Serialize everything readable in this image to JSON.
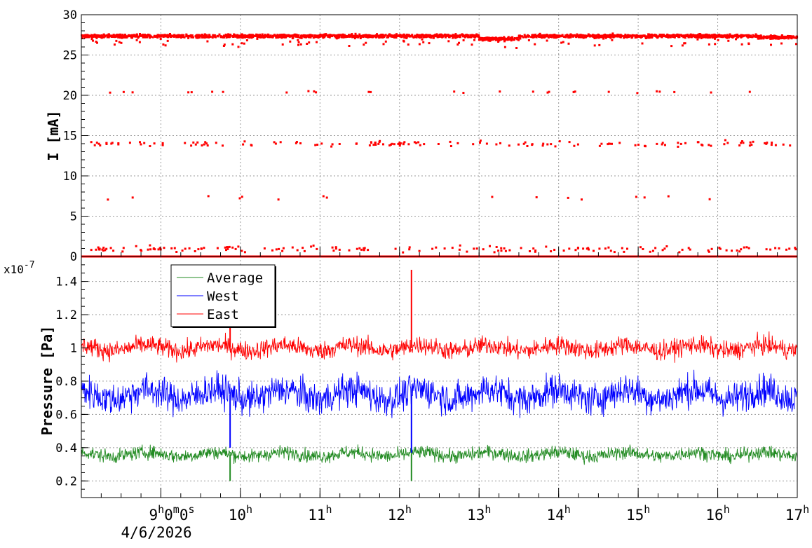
{
  "chart_data": [
    {
      "type": "scatter",
      "panel": "current",
      "ylabel": "I [mA]",
      "ylim": [
        0,
        30
      ],
      "yticks": [
        0,
        5,
        10,
        15,
        20,
        25,
        30
      ],
      "xlim_hours": [
        8.0,
        17.0
      ],
      "grid": true,
      "series": [
        {
          "color": "#ff0000",
          "bands": [
            {
              "level": 27.3,
              "spread": 0.4,
              "note_density": "dense"
            },
            {
              "level": 0.0,
              "spread": 0.0,
              "note_density": "dense"
            },
            {
              "level": 0.8,
              "spread": 0.7,
              "note_density": "sparse"
            },
            {
              "level": 14.0,
              "spread": 0.9,
              "note_density": "sparse"
            },
            {
              "level": 20.4,
              "spread": 0.3,
              "note_density": "rare"
            },
            {
              "level": 7.3,
              "spread": 0.5,
              "note_density": "rare"
            }
          ]
        }
      ]
    },
    {
      "type": "line",
      "panel": "pressure",
      "ylabel": "Pressure [Pa]",
      "yscale_label": "x10",
      "yscale_exp": "-7",
      "ylim": [
        0.1,
        1.55
      ],
      "yticks": [
        0.2,
        0.4,
        0.6,
        0.8,
        1.0,
        1.2,
        1.4
      ],
      "ytick_labels": [
        "0.2",
        "0.4",
        "0.6",
        "0.8",
        "1",
        "1.2",
        "1.4"
      ],
      "xlim_hours": [
        8.0,
        17.0
      ],
      "grid": true,
      "legend_position": "top-left",
      "series": [
        {
          "name": "Average",
          "color": "#228b22",
          "mean": 0.36,
          "spread": 0.05,
          "spike_hours": [
            9.87,
            12.15
          ],
          "spike_values": [
            0.2,
            0.2
          ]
        },
        {
          "name": "West",
          "color": "#0000ff",
          "mean": 0.72,
          "spread": 0.12,
          "spike_hours": [
            9.87,
            12.15
          ],
          "spike_values": [
            0.4,
            0.37
          ]
        },
        {
          "name": "East",
          "color": "#ff0000",
          "mean": 1.0,
          "spread": 0.07,
          "spike_hours": [
            9.87,
            12.15
          ],
          "spike_values": [
            1.3,
            1.47
          ]
        }
      ]
    }
  ],
  "x_axis": {
    "ticks": [
      {
        "hour": 9,
        "label": "9",
        "sup": "h",
        "extra": [
          [
            "0",
            "m"
          ],
          [
            "0",
            "s"
          ]
        ]
      },
      {
        "hour": 10,
        "label": "10",
        "sup": "h"
      },
      {
        "hour": 11,
        "label": "11",
        "sup": "h"
      },
      {
        "hour": 12,
        "label": "12",
        "sup": "h"
      },
      {
        "hour": 13,
        "label": "13",
        "sup": "h"
      },
      {
        "hour": 14,
        "label": "14",
        "sup": "h"
      },
      {
        "hour": 15,
        "label": "15",
        "sup": "h"
      },
      {
        "hour": 16,
        "label": "16",
        "sup": "h"
      },
      {
        "hour": 17,
        "label": "17",
        "sup": "h"
      }
    ],
    "date_label": "4/6/2026"
  }
}
